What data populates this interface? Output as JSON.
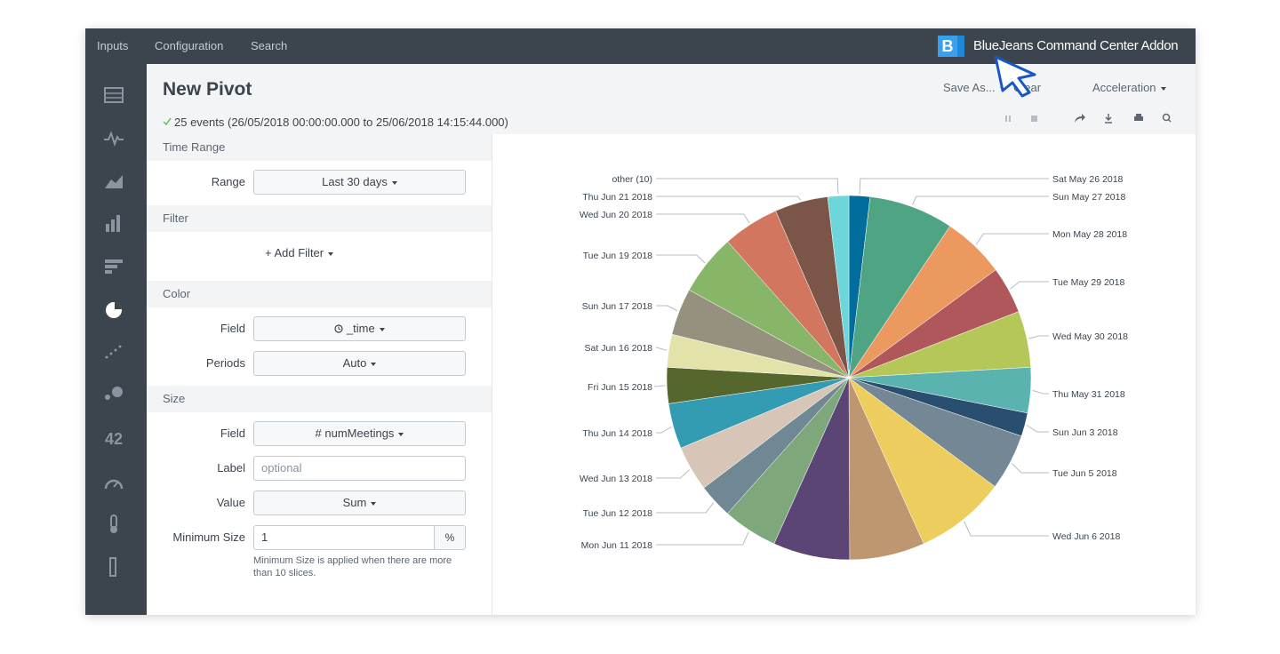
{
  "nav": {
    "items": [
      "Inputs",
      "Configuration",
      "Search"
    ],
    "logo": "B",
    "app_title": "BlueJeans Command Center Addon"
  },
  "sidebar": {
    "single_value_icon": "42"
  },
  "header": {
    "title": "New Pivot",
    "status": "25 events (26/05/2018 00:00:00.000 to 25/06/2018 14:15:44.000)",
    "actions": [
      "Save As...",
      "Clear",
      "Acceleration"
    ]
  },
  "panel": {
    "time_range": {
      "heading": "Time Range",
      "range_label": "Range",
      "range_value": "Last 30 days"
    },
    "filter": {
      "heading": "Filter",
      "add": "+ Add Filter"
    },
    "color": {
      "heading": "Color",
      "field_label": "Field",
      "field_value": "_time",
      "periods_label": "Periods",
      "periods_value": "Auto"
    },
    "size": {
      "heading": "Size",
      "field_label": "Field",
      "field_value": "# numMeetings",
      "label_label": "Label",
      "label_placeholder": "optional",
      "value_label": "Value",
      "value_value": "Sum",
      "min_label": "Minimum Size",
      "min_value": "1",
      "min_unit": "%",
      "help": "Minimum Size is applied when there are more than 10 slices."
    }
  },
  "chart_data": {
    "type": "pie",
    "categories": [
      "Sat May 26 2018",
      "Sun May 27 2018",
      "Mon May 28 2018",
      "Tue May 29 2018",
      "Wed May 30 2018",
      "Thu May 31 2018",
      "Sun Jun 3 2018",
      "Tue Jun 5 2018",
      "Wed Jun 6 2018",
      null,
      null,
      "Mon Jun 11 2018",
      "Tue Jun 12 2018",
      "Wed Jun 13 2018",
      "Thu Jun 14 2018",
      "Fri Jun 15 2018",
      "Sat Jun 16 2018",
      "Sun Jun 17 2018",
      "Tue Jun 19 2018",
      "Wed Jun 20 2018",
      "Thu Jun 21 2018",
      "other (10)"
    ],
    "values": [
      6.7,
      27,
      20,
      15,
      18,
      14.5,
      7.5,
      18,
      29,
      24,
      24.5,
      17.5,
      11,
      14.5,
      14.5,
      11.5,
      10.5,
      15,
      19.5,
      18,
      17,
      6.7
    ],
    "colors": [
      "#006d9c",
      "#4fa484",
      "#ec9960",
      "#af575a",
      "#b6c75a",
      "#5ab3ae",
      "#294e70",
      "#738795",
      "#edcd5e",
      "#be9670",
      "#5a4575",
      "#7ea77b",
      "#708794",
      "#d7c6b7",
      "#339bb2",
      "#55672d",
      "#e3e3a9",
      "#96907f",
      "#87b669",
      "#d37660",
      "#7b5547",
      "#6cd6da"
    ]
  }
}
